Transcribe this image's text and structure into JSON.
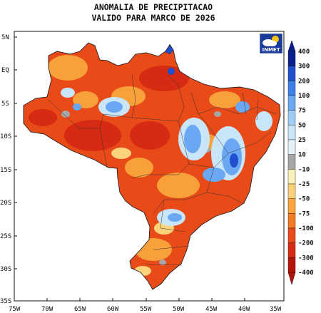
{
  "title_line1": "ANOMALIA DE PRECIPITACAO",
  "title_line2": "VALIDO PARA MARCO DE 2026",
  "logo_text": "INMET",
  "lat_labels": [
    "5N",
    "EQ",
    "5S",
    "10S",
    "15S",
    "20S",
    "25S",
    "30S",
    "35S"
  ],
  "lon_labels": [
    "75W",
    "70W",
    "65W",
    "60W",
    "55W",
    "50W",
    "45W",
    "40W",
    "35W"
  ],
  "colorbar": {
    "labels": [
      "400",
      "300",
      "200",
      "100",
      "75",
      "50",
      "25",
      "10",
      "-10",
      "-25",
      "-50",
      "-75",
      "-100",
      "-200",
      "-300",
      "-400"
    ],
    "colors": [
      "#0a1f8f",
      "#1f4fcf",
      "#3d7fe8",
      "#6aa8f4",
      "#9fcbf7",
      "#c9e6f8",
      "#e4f2f8",
      "#a6a6a6",
      "#f8f0b8",
      "#fcd27a",
      "#fca33c",
      "#f27a22",
      "#e84a18",
      "#d62a12",
      "#b51208"
    ],
    "colors_note": "colors ordered from top (wettest) to bottom (driest)"
  },
  "colors": {
    "dry_strong": "#e84a18",
    "dry_moderate": "#f8a03a",
    "dry_weak": "#fcd27a",
    "neutral": "#a6a6a6",
    "wet_weak": "#c9e6f8",
    "wet_moderate": "#6aa8f4",
    "wet_strong": "#1f4fcf"
  }
}
